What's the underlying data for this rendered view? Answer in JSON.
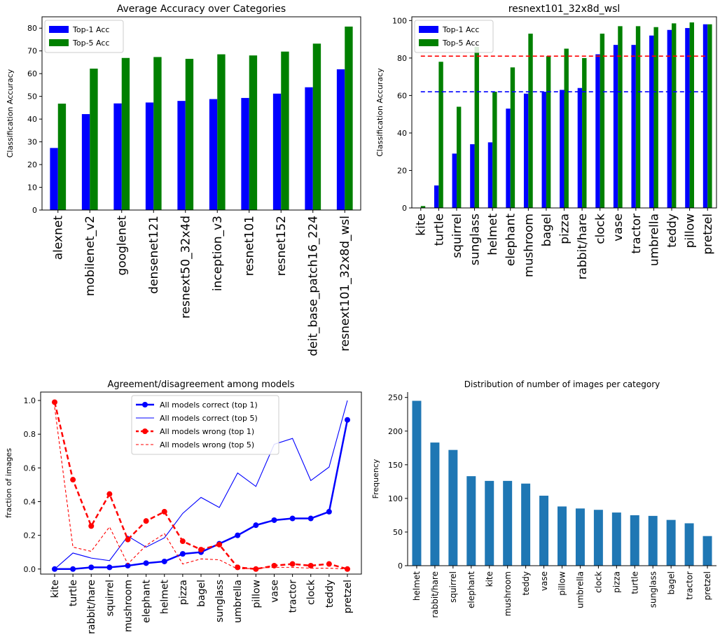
{
  "chart_data": [
    {
      "type": "bar",
      "title": "Average Accuracy over Categories",
      "xlabel": "",
      "ylabel": "Classification Accuracy",
      "ylim": [
        0,
        85
      ],
      "yticks": [
        0,
        10,
        20,
        30,
        40,
        50,
        60,
        70,
        80
      ],
      "legend_position": "upper-left",
      "categories": [
        "alexnet",
        "mobilenet_v2",
        "googlenet",
        "densenet121",
        "resnext50_32x4d",
        "inception_v3",
        "resnet101",
        "resnet152",
        "deit_base_patch16_224",
        "resnext101_32x8d_wsl"
      ],
      "series": [
        {
          "name": "Top-1 Acc",
          "color": "#0000ff",
          "values": [
            27.3,
            42.2,
            46.9,
            47.3,
            48.0,
            48.8,
            49.3,
            51.2,
            54.0,
            61.9
          ]
        },
        {
          "name": "Top-5 Acc",
          "color": "#008000",
          "values": [
            46.8,
            62.2,
            66.9,
            67.3,
            66.5,
            68.5,
            68.0,
            69.7,
            73.2,
            80.7
          ]
        }
      ]
    },
    {
      "type": "bar",
      "title": "resnext101_32x8d_wsl",
      "xlabel": "",
      "ylabel": "Classification Accuracy",
      "ylim": [
        0,
        102
      ],
      "yticks": [
        0,
        20,
        40,
        60,
        80,
        100
      ],
      "legend_position": "upper-left",
      "categories": [
        "kite",
        "turtle",
        "squirrel",
        "sunglass",
        "helmet",
        "elephant",
        "mushroom",
        "bagel",
        "pizza",
        "rabbit/hare",
        "clock",
        "vase",
        "tractor",
        "umbrella",
        "teddy",
        "pillow",
        "pretzel"
      ],
      "series": [
        {
          "name": "Top-1 Acc",
          "color": "#0000ff",
          "values": [
            0,
            12,
            29,
            34,
            35,
            53,
            61,
            62,
            63,
            64,
            82,
            87,
            87,
            92,
            95,
            96,
            98
          ]
        },
        {
          "name": "Top-5 Acc",
          "color": "#008000",
          "values": [
            1,
            78,
            54,
            86,
            62,
            75,
            93,
            81,
            85,
            80,
            93,
            97,
            97,
            96.5,
            98.5,
            99,
            98
          ]
        }
      ],
      "hlines": [
        {
          "value": 62,
          "color": "#0000ff",
          "style": "dashed"
        },
        {
          "value": 81,
          "color": "#ff0000",
          "style": "dashed"
        }
      ]
    },
    {
      "type": "line",
      "title": "Agreement/disagreement among models",
      "xlabel": "",
      "ylabel": "fraction of images",
      "ylim": [
        -0.03,
        1.05
      ],
      "yticks": [
        0.0,
        0.2,
        0.4,
        0.6,
        0.8,
        1.0
      ],
      "ytick_labels": [
        "0.0",
        "0.2",
        "0.4",
        "0.6",
        "0.8",
        "1.0"
      ],
      "legend_position": "upper-center",
      "categories": [
        "kite",
        "turtle",
        "rabbit/hare",
        "squirrel",
        "mushroom",
        "elephant",
        "helmet",
        "pizza",
        "bagel",
        "sunglass",
        "umbrella",
        "pillow",
        "vase",
        "tractor",
        "clock",
        "teddy",
        "pretzel"
      ],
      "series": [
        {
          "name": "All models correct (top 1)",
          "color": "#0000ff",
          "style": "solid-thick-markers",
          "values": [
            0.0,
            0.0,
            0.01,
            0.01,
            0.02,
            0.035,
            0.045,
            0.09,
            0.1,
            0.15,
            0.2,
            0.26,
            0.29,
            0.3,
            0.3,
            0.34,
            0.885
          ]
        },
        {
          "name": "All models correct (top 5)",
          "color": "#0000ff",
          "style": "solid-thin",
          "values": [
            0.0,
            0.095,
            0.065,
            0.05,
            0.195,
            0.13,
            0.185,
            0.33,
            0.425,
            0.365,
            0.57,
            0.49,
            0.74,
            0.775,
            0.525,
            0.605,
            1.0
          ]
        },
        {
          "name": "All models wrong (top 1)",
          "color": "#ff0000",
          "style": "dashed-thick-markers",
          "values": [
            0.99,
            0.53,
            0.255,
            0.445,
            0.175,
            0.285,
            0.34,
            0.165,
            0.115,
            0.145,
            0.01,
            0.0,
            0.02,
            0.03,
            0.02,
            0.03,
            0.0
          ]
        },
        {
          "name": "All models wrong (top 5)",
          "color": "#ff0000",
          "style": "dashed-thin",
          "values": [
            0.96,
            0.13,
            0.105,
            0.25,
            0.03,
            0.14,
            0.21,
            0.03,
            0.06,
            0.055,
            0.0,
            0.005,
            0.01,
            0.01,
            0.005,
            0.005,
            0.0
          ]
        }
      ]
    },
    {
      "type": "bar",
      "title": "Distribution of number of images per category",
      "xlabel": "",
      "ylabel": "Frequency",
      "ylim": [
        0,
        258
      ],
      "yticks": [
        0,
        50,
        100,
        150,
        200,
        250
      ],
      "categories": [
        "helmet",
        "rabbit/hare",
        "squirrel",
        "elephant",
        "kite",
        "mushroom",
        "teddy",
        "vase",
        "pillow",
        "umbrella",
        "clock",
        "pizza",
        "turtle",
        "sunglass",
        "bagel",
        "tractor",
        "pretzel"
      ],
      "series": [
        {
          "name": "",
          "color": "#1f77b4",
          "values": [
            245,
            183,
            172,
            133,
            126,
            126,
            122,
            104,
            88,
            85,
            83,
            79,
            75,
            74,
            68,
            63,
            44
          ]
        }
      ]
    }
  ]
}
